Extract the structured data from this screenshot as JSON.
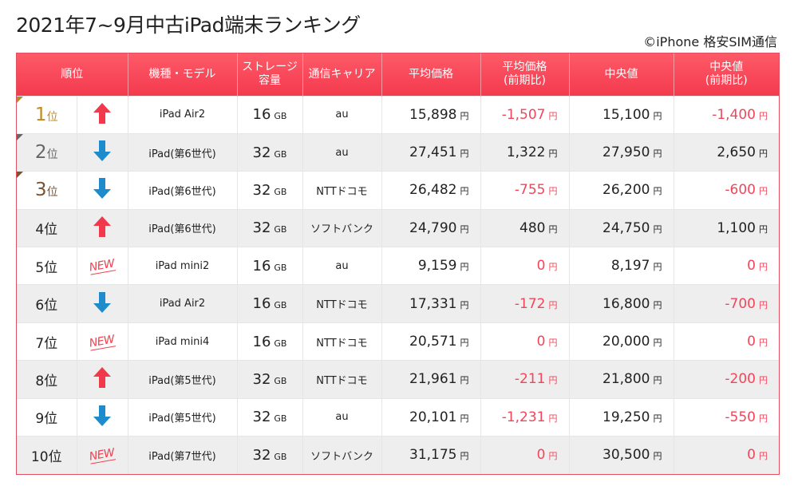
{
  "title": "2021年7~9月中古iPad端末ランキング",
  "credit": "©iPhone 格安SIM通信",
  "colors": {
    "header_bg": "#f43a4e",
    "negative": "#f2455a",
    "up_arrow": "#f0394b",
    "down_arrow": "#1e8ccc",
    "gold": "#c48a1e"
  },
  "headers": {
    "rank": "順位",
    "model": "機種・モデル",
    "storage_line1": "ストレージ",
    "storage_line2": "容量",
    "carrier": "通信キャリア",
    "avg": "平均価格",
    "avg_change_line1": "平均価格",
    "avg_change_line2": "(前期比)",
    "median": "中央値",
    "median_change_line1": "中央値",
    "median_change_line2": "(前期比)"
  },
  "units": {
    "rank_suffix": "位",
    "storage": "GB",
    "yen": "円"
  },
  "new_label": "NEW",
  "rows": [
    {
      "rank": "1",
      "trend": "up",
      "model": "iPad Air2",
      "storage": "16",
      "carrier": "au",
      "avg": "15,898",
      "avg_change": "-1,507",
      "median": "15,100",
      "median_change": "-1,400"
    },
    {
      "rank": "2",
      "trend": "down",
      "model": "iPad(第6世代)",
      "storage": "32",
      "carrier": "au",
      "avg": "27,451",
      "avg_change": "1,322",
      "median": "27,950",
      "median_change": "2,650"
    },
    {
      "rank": "3",
      "trend": "down",
      "model": "iPad(第6世代)",
      "storage": "32",
      "carrier": "NTTドコモ",
      "avg": "26,482",
      "avg_change": "-755",
      "median": "26,200",
      "median_change": "-600"
    },
    {
      "rank": "4",
      "trend": "up",
      "model": "iPad(第6世代)",
      "storage": "32",
      "carrier": "ソフトバンク",
      "avg": "24,790",
      "avg_change": "480",
      "median": "24,750",
      "median_change": "1,100"
    },
    {
      "rank": "5",
      "trend": "new",
      "model": "iPad mini2",
      "storage": "16",
      "carrier": "au",
      "avg": "9,159",
      "avg_change": "0",
      "median": "8,197",
      "median_change": "0"
    },
    {
      "rank": "6",
      "trend": "down",
      "model": "iPad Air2",
      "storage": "16",
      "carrier": "NTTドコモ",
      "avg": "17,331",
      "avg_change": "-172",
      "median": "16,800",
      "median_change": "-700"
    },
    {
      "rank": "7",
      "trend": "new",
      "model": "iPad mini4",
      "storage": "16",
      "carrier": "NTTドコモ",
      "avg": "20,571",
      "avg_change": "0",
      "median": "20,000",
      "median_change": "0"
    },
    {
      "rank": "8",
      "trend": "up",
      "model": "iPad(第5世代)",
      "storage": "32",
      "carrier": "NTTドコモ",
      "avg": "21,961",
      "avg_change": "-211",
      "median": "21,800",
      "median_change": "-200"
    },
    {
      "rank": "9",
      "trend": "down",
      "model": "iPad(第5世代)",
      "storage": "32",
      "carrier": "au",
      "avg": "20,101",
      "avg_change": "-1,231",
      "median": "19,250",
      "median_change": "-550"
    },
    {
      "rank": "10",
      "trend": "new",
      "model": "iPad(第7世代)",
      "storage": "32",
      "carrier": "ソフトバンク",
      "avg": "31,175",
      "avg_change": "0",
      "median": "30,500",
      "median_change": "0"
    }
  ]
}
